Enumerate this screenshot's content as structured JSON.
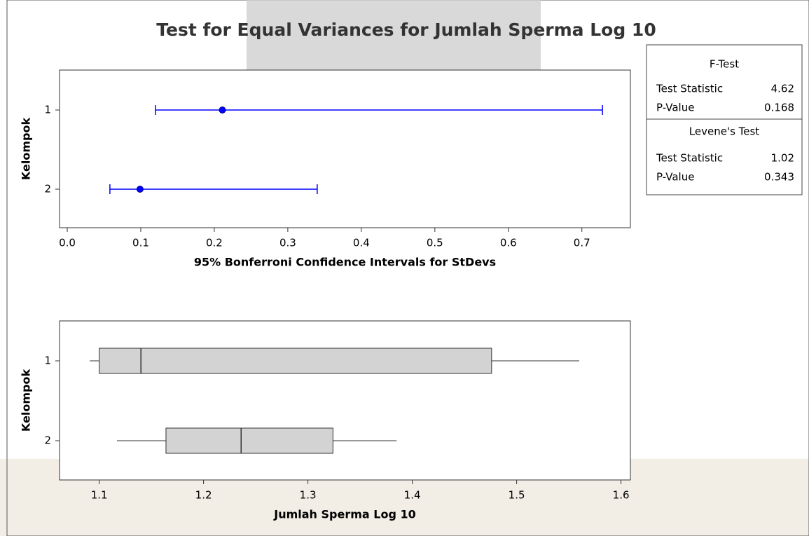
{
  "title": "Test for Equal Variances for Jumlah Sperma Log 10",
  "chart_data": [
    {
      "type": "interval",
      "xlabel": "95% Bonferroni Confidence Intervals for StDevs",
      "ylabel": "Kelompok",
      "categories": [
        "1",
        "2"
      ],
      "color": "#0000ff",
      "intervals": [
        {
          "lower": 0.12,
          "center": 0.211,
          "upper": 0.728
        },
        {
          "lower": 0.058,
          "center": 0.099,
          "upper": 0.34
        }
      ],
      "xlim": [
        -0.0105,
        0.766
      ],
      "xticks": [
        {
          "value": 0,
          "label": "0.0"
        },
        0.1,
        0.2,
        0.3,
        0.4,
        0.5,
        0.6,
        0.7
      ]
    },
    {
      "type": "boxplot",
      "xlabel": "Jumlah Sperma Log 10",
      "ylabel": "Kelompok",
      "categories": [
        "1",
        "2"
      ],
      "color": "#d3d3d3",
      "boxes": [
        {
          "whisker_low": 1.091,
          "q1": 1.1,
          "median": 1.14,
          "q3": 1.476,
          "whisker_high": 1.56
        },
        {
          "whisker_low": 1.117,
          "q1": 1.164,
          "median": 1.236,
          "q3": 1.324,
          "whisker_high": 1.385
        }
      ],
      "xlim": [
        1.062,
        1.609
      ],
      "xticks": [
        1.1,
        1.2,
        1.3,
        1.4,
        1.5,
        1.6
      ]
    }
  ],
  "stats": {
    "sections": [
      {
        "title": "F-Test",
        "rows": [
          [
            "Test Statistic",
            "4.62"
          ],
          [
            "P-Value",
            "0.168"
          ]
        ]
      },
      {
        "title": "Levene's Test",
        "rows": [
          [
            "Test Statistic",
            "1.02"
          ],
          [
            "P-Value",
            "0.343"
          ]
        ]
      }
    ]
  }
}
